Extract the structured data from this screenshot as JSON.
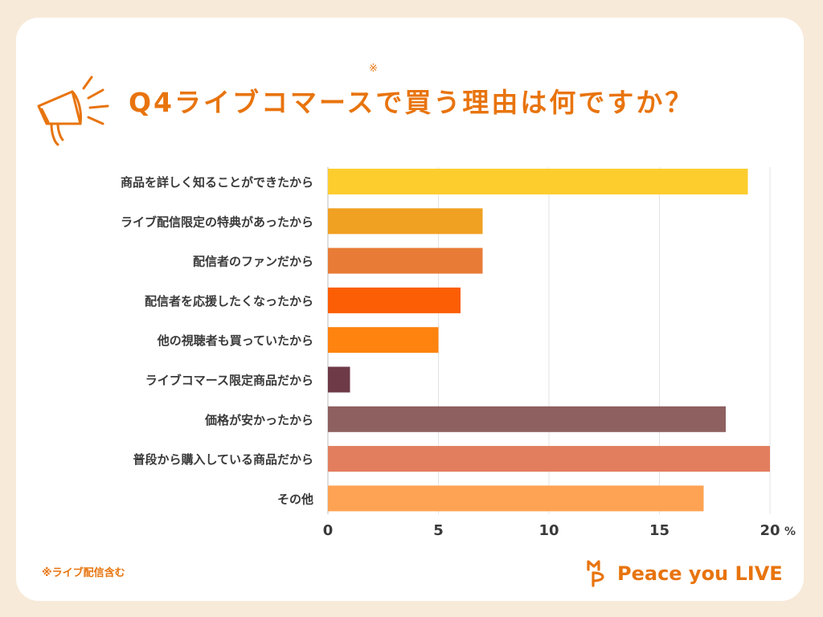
{
  "header": {
    "title": "Q4ライブコマースで買う理由は何ですか？",
    "title_note": "※"
  },
  "footnote": "※ライブ配信含む",
  "logo": {
    "text": "Peace you LIVE",
    "icon": "peace-you-live-logo-icon"
  },
  "decoration": {
    "icon": "megaphone-icon"
  },
  "colors": {
    "accent": "#e8740e",
    "background": "#f7ead9",
    "card": "#ffffff"
  },
  "chart_data": {
    "type": "bar",
    "orientation": "horizontal",
    "categories": [
      "商品を詳しく知ることができたから",
      "ライブ配信限定の特典があったから",
      "配信者のファンだから",
      "配信者を応援したくなったから",
      "他の視聴者も買っていたから",
      "ライブコマース限定商品だから",
      "価格が安かったから",
      "普段から購入している商品だから",
      "その他"
    ],
    "values": [
      19,
      7,
      7,
      6,
      5,
      1,
      18,
      20,
      17
    ],
    "bar_colors": [
      "#fdcd2e",
      "#f0a122",
      "#e87c37",
      "#fb5e05",
      "#fe830f",
      "#6e3a47",
      "#8e6060",
      "#e27e5e",
      "#fea353"
    ],
    "xlim": [
      0,
      20
    ],
    "xticks": [
      0,
      5,
      10,
      15,
      20
    ],
    "x_unit": "%",
    "grid": true
  }
}
